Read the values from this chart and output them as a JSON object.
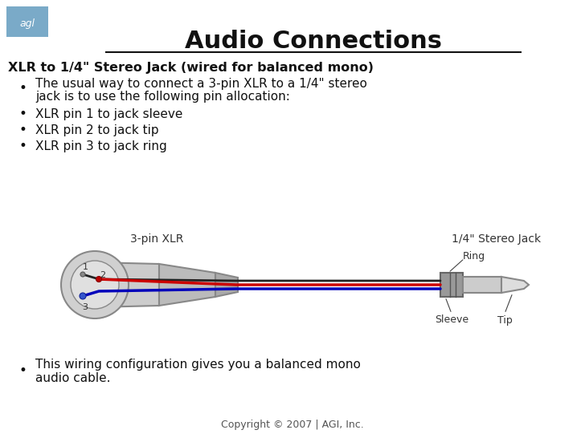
{
  "title": "Audio Connections",
  "subtitle": "XLR to 1/4\" Stereo Jack (wired for balanced mono)",
  "bullet1_line1": "The usual way to connect a 3-pin XLR to a 1/4\" stereo",
  "bullet1_line2": "jack is to use the following pin allocation:",
  "bullet2": "XLR pin 1 to jack sleeve",
  "bullet3": "XLR pin 2 to jack tip",
  "bullet4": "XLR pin 3 to jack ring",
  "footer_line1": "This wiring configuration gives you a balanced mono",
  "footer_line2": "audio cable.",
  "copyright": "Copyright © 2007 | AGI, Inc.",
  "bg_color": "#ffffff",
  "agl_box_color": "#7aaac8",
  "agl_text_color": "#ffffff",
  "diagram_label_xlr": "3-pin XLR",
  "diagram_label_jack": "1/4\" Stereo Jack",
  "wire_red": "#cc0000",
  "wire_blue": "#0000bb",
  "wire_black": "#222222",
  "text_color": "#111111",
  "label_color": "#333333"
}
